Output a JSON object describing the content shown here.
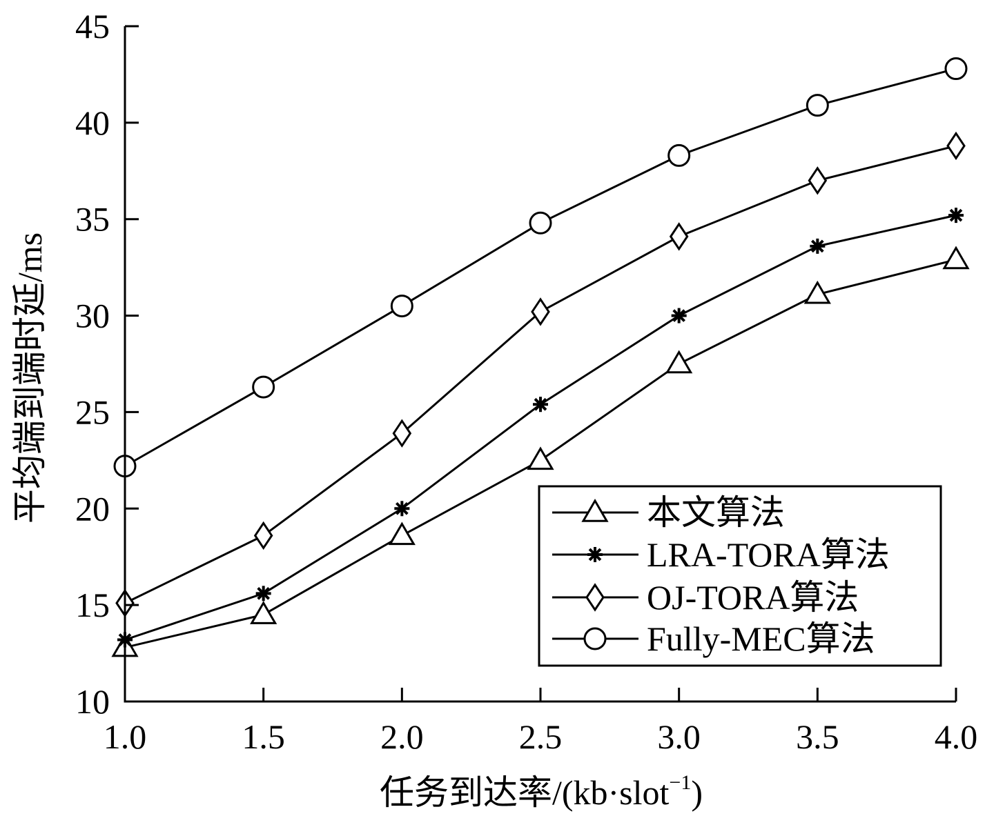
{
  "chart_data": {
    "type": "line",
    "title": "",
    "xlabel": "任务到达率/(kb·slot",
    "xlabel_sup": "−1",
    "xlabel_close": ")",
    "ylabel": "平均端到端时延/ms",
    "x": [
      1.0,
      1.5,
      2.0,
      2.5,
      3.0,
      3.5,
      4.0
    ],
    "x_tick_labels": [
      "1.0",
      "1.5",
      "2.0",
      "2.5",
      "3.0",
      "3.5",
      "4.0"
    ],
    "y_ticks": [
      10,
      15,
      20,
      25,
      30,
      35,
      40,
      45
    ],
    "xlim": [
      1.0,
      4.0
    ],
    "ylim": [
      10,
      45
    ],
    "grid": false,
    "legend_position": "bottom-right",
    "color": "#000000",
    "series": [
      {
        "name": "本文算法",
        "marker": "triangle",
        "values": [
          12.8,
          14.5,
          18.6,
          22.5,
          27.5,
          31.1,
          32.9
        ]
      },
      {
        "name": "LRA-TORA算法",
        "marker": "asterisk",
        "values": [
          13.2,
          15.6,
          20.0,
          25.4,
          30.0,
          33.6,
          35.2
        ]
      },
      {
        "name": "OJ-TORA算法",
        "marker": "diamond",
        "values": [
          15.1,
          18.6,
          23.9,
          30.2,
          34.1,
          37.0,
          38.8
        ]
      },
      {
        "name": "Fully-MEC算法",
        "marker": "circle",
        "values": [
          22.2,
          26.3,
          30.5,
          34.8,
          38.3,
          40.9,
          42.8
        ]
      }
    ]
  }
}
